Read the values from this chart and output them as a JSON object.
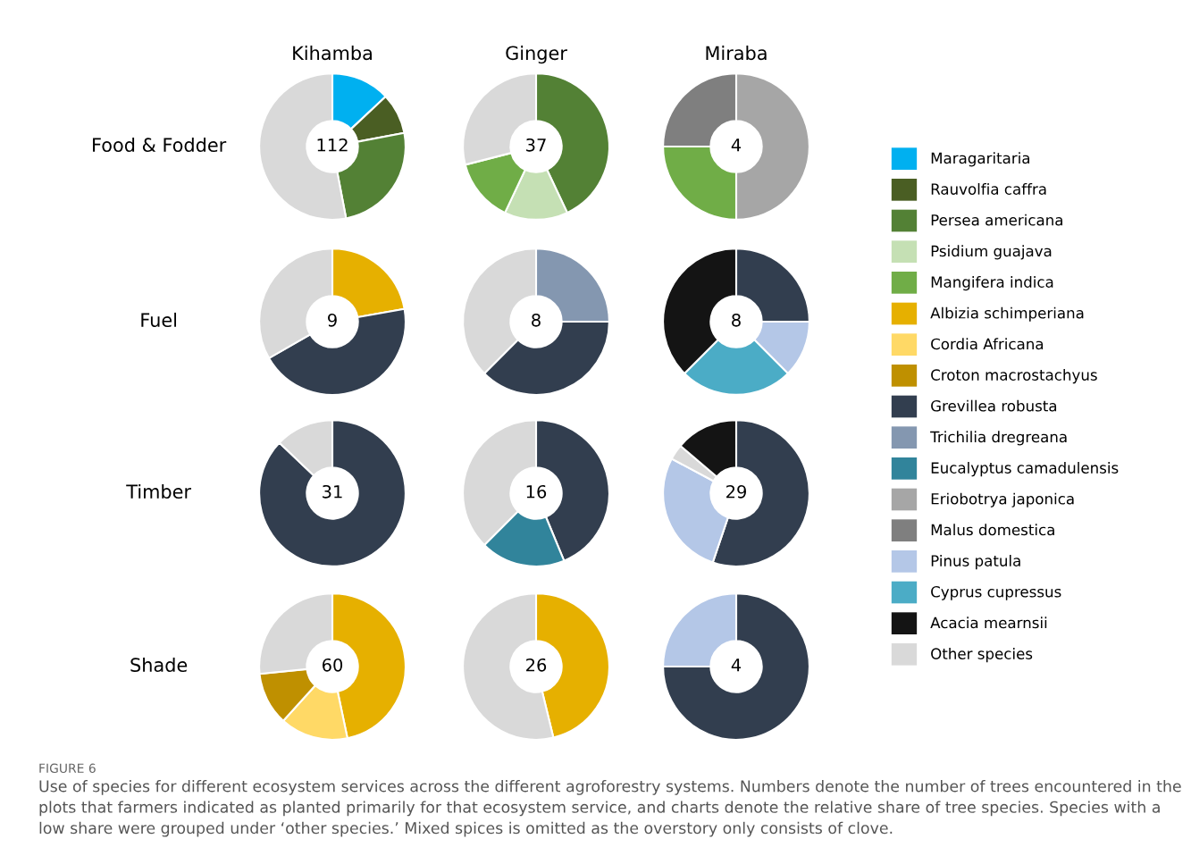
{
  "chart_data": [
    {
      "type": "donut",
      "title": "Kihamba",
      "ylabel": "Food & Fodder",
      "annotations": [
        "112"
      ],
      "categories": [
        null,
        null,
        null,
        null
      ],
      "values": [
        13,
        9,
        25,
        53
      ],
      "colors": [
        "#00b0f0",
        "#4a5e23",
        "#538135",
        "#d9d9d9"
      ]
    },
    {
      "type": "donut",
      "title": "Ginger",
      "annotations": [
        "37"
      ],
      "categories": [
        null,
        null,
        null,
        null
      ],
      "values": [
        43,
        14,
        14,
        29
      ],
      "colors": [
        "#538135",
        "#c5e0b4",
        "#70ad47",
        "#d9d9d9"
      ]
    },
    {
      "type": "donut",
      "title": "Miraba",
      "annotations": [
        "4"
      ],
      "categories": [
        null,
        null,
        null
      ],
      "values": [
        50,
        25,
        25
      ],
      "colors": [
        "#a6a6a6",
        "#70ad47",
        "#7f7f7f"
      ]
    },
    {
      "type": "donut",
      "ylabel": "Fuel",
      "annotations": [
        "9"
      ],
      "categories": [
        null,
        null,
        null
      ],
      "values": [
        22.2,
        44.5,
        33.3
      ],
      "colors": [
        "#e6b000",
        "#323e4f",
        "#d9d9d9"
      ]
    },
    {
      "type": "donut",
      "annotations": [
        "8"
      ],
      "categories": [
        null,
        null,
        null
      ],
      "values": [
        25,
        37.5,
        37.5
      ],
      "colors": [
        "#8497b0",
        "#323e4f",
        "#d9d9d9"
      ]
    },
    {
      "type": "donut",
      "annotations": [
        "8"
      ],
      "categories": [
        null,
        null,
        null,
        null
      ],
      "values": [
        25,
        12.5,
        25,
        37.5
      ],
      "colors": [
        "#323e4f",
        "#b4c7e7",
        "#4bacc6",
        "#141414"
      ]
    },
    {
      "type": "donut",
      "ylabel": "Timber",
      "annotations": [
        "31"
      ],
      "categories": [
        null,
        null
      ],
      "values": [
        87.1,
        12.9
      ],
      "colors": [
        "#323e4f",
        "#d9d9d9"
      ]
    },
    {
      "type": "donut",
      "annotations": [
        "16"
      ],
      "categories": [
        null,
        null,
        null
      ],
      "values": [
        43.75,
        18.75,
        37.5
      ],
      "colors": [
        "#323e4f",
        "#31849b",
        "#d9d9d9"
      ]
    },
    {
      "type": "donut",
      "annotations": [
        "29"
      ],
      "categories": [
        null,
        null,
        null,
        null
      ],
      "values": [
        55.2,
        27.6,
        3.4,
        13.8
      ],
      "colors": [
        "#323e4f",
        "#b4c7e7",
        "#d9d9d9",
        "#141414"
      ]
    },
    {
      "type": "donut",
      "ylabel": "Shade",
      "annotations": [
        "60"
      ],
      "categories": [
        null,
        null,
        null,
        null
      ],
      "values": [
        46.7,
        15,
        11.7,
        26.6
      ],
      "colors": [
        "#e6b000",
        "#ffd966",
        "#bf9000",
        "#d9d9d9"
      ]
    },
    {
      "type": "donut",
      "annotations": [
        "26"
      ],
      "categories": [
        null,
        null
      ],
      "values": [
        46.2,
        53.8
      ],
      "colors": [
        "#e6b000",
        "#d9d9d9"
      ]
    },
    {
      "type": "donut",
      "annotations": [
        "4"
      ],
      "categories": [
        null,
        null
      ],
      "values": [
        75,
        25
      ],
      "colors": [
        "#323e4f",
        "#b4c7e7"
      ]
    },
    {
      "type": "other",
      "categories": [
        "Maragaritaria",
        "Rauvolfia caffra",
        "Persea americana",
        "Psidium guajava",
        "Mangifera indica",
        "Albizia schimperiana",
        "Cordia Africana",
        "Croton macrostachyus",
        "Grevillea robusta",
        "Trichilia dregreana",
        "Eucalyptus camadulensis",
        "Eriobotrya japonica",
        "Malus domestica",
        "Pinus patula",
        "Cyprus cupressus",
        "Acacia mearnsii",
        "Other species"
      ],
      "colors": [
        "#00b0f0",
        "#4a5e23",
        "#538135",
        "#c5e0b4",
        "#70ad47",
        "#e6b000",
        "#ffd966",
        "#bf9000",
        "#323e4f",
        "#8497b0",
        "#31849b",
        "#a6a6a6",
        "#7f7f7f",
        "#b4c7e7",
        "#4bacc6",
        "#141414",
        "#d9d9d9"
      ],
      "annotations": [
        "FIGURE 6",
        "Use of species for different ecosystem services across the different agroforestry systems. Numbers denote the number of trees encountered in the plots that farmers indicated as planted primarily for that ecosystem service, and charts denote the relative share of tree species. Species with a low share were grouped under ‘other species.’ Mixed spices is omitted as the overstory only consists of clove."
      ]
    }
  ]
}
